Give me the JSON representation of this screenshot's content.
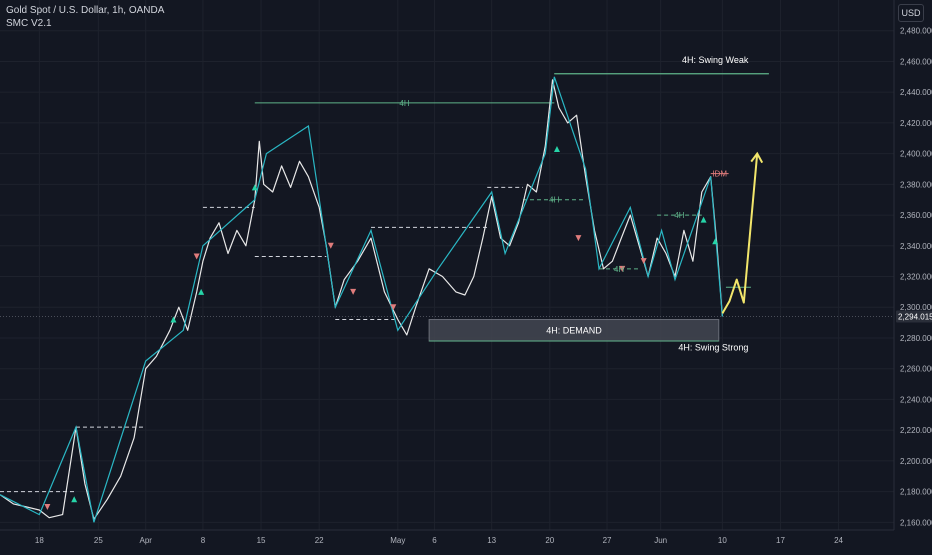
{
  "header": {
    "title": "Gold Spot / U.S. Dollar, 1h, OANDA",
    "indicator": "SMC V2.1"
  },
  "currency": "USD",
  "chart_data": {
    "type": "line",
    "ylim": [
      2155,
      2500
    ],
    "yticks": [
      2160,
      2180,
      2200,
      2220,
      2240,
      2260,
      2280,
      2300,
      2320,
      2340,
      2360,
      2380,
      2400,
      2420,
      2440,
      2460,
      2480
    ],
    "ytick_labels": [
      "2,160.000",
      "2,180.000",
      "2,200.000",
      "2,220.000",
      "2,240.000",
      "2,260.000",
      "2,280.000",
      "2,300.000",
      "2,320.000",
      "2,340.000",
      "2,360.000",
      "2,380.000",
      "2,400.000",
      "2,420.000",
      "2,440.000",
      "2,460.000",
      "2,480.000"
    ],
    "xlim": [
      0,
      100
    ],
    "xticks": [
      {
        "x": 4.4,
        "label": "18"
      },
      {
        "x": 11.0,
        "label": "25"
      },
      {
        "x": 16.3,
        "label": "Apr"
      },
      {
        "x": 22.7,
        "label": "8"
      },
      {
        "x": 29.2,
        "label": "15"
      },
      {
        "x": 35.7,
        "label": "22"
      },
      {
        "x": 44.5,
        "label": "May"
      },
      {
        "x": 48.6,
        "label": "6"
      },
      {
        "x": 55.0,
        "label": "13"
      },
      {
        "x": 61.5,
        "label": "20"
      },
      {
        "x": 67.9,
        "label": "27"
      },
      {
        "x": 73.9,
        "label": "Jun"
      },
      {
        "x": 80.8,
        "label": "10"
      },
      {
        "x": 87.3,
        "label": "17"
      },
      {
        "x": 93.8,
        "label": "24"
      }
    ],
    "last_price": 2294.015,
    "last_price_label": "2,294.015",
    "price_path": [
      [
        0,
        2178
      ],
      [
        1.5,
        2172
      ],
      [
        3,
        2170
      ],
      [
        4.4,
        2168
      ],
      [
        5.5,
        2163
      ],
      [
        7,
        2165
      ],
      [
        8.5,
        2222
      ],
      [
        9.5,
        2185
      ],
      [
        10.5,
        2162
      ],
      [
        12,
        2175
      ],
      [
        13.5,
        2190
      ],
      [
        15,
        2215
      ],
      [
        16.3,
        2260
      ],
      [
        17.5,
        2268
      ],
      [
        19,
        2285
      ],
      [
        20,
        2300
      ],
      [
        21,
        2285
      ],
      [
        22,
        2310
      ],
      [
        22.7,
        2330
      ],
      [
        23.5,
        2345
      ],
      [
        24.5,
        2355
      ],
      [
        25.5,
        2335
      ],
      [
        26.5,
        2350
      ],
      [
        27.5,
        2340
      ],
      [
        28.5,
        2370
      ],
      [
        29,
        2408
      ],
      [
        29.5,
        2380
      ],
      [
        30.5,
        2375
      ],
      [
        31.5,
        2392
      ],
      [
        32.5,
        2378
      ],
      [
        33.5,
        2395
      ],
      [
        34.5,
        2385
      ],
      [
        35.7,
        2365
      ],
      [
        36.5,
        2340
      ],
      [
        37.5,
        2300
      ],
      [
        38.5,
        2318
      ],
      [
        40,
        2330
      ],
      [
        41.5,
        2345
      ],
      [
        43,
        2310
      ],
      [
        44.5,
        2292
      ],
      [
        45.5,
        2282
      ],
      [
        46.5,
        2300
      ],
      [
        48,
        2325
      ],
      [
        49.5,
        2320
      ],
      [
        51,
        2310
      ],
      [
        52,
        2308
      ],
      [
        53,
        2320
      ],
      [
        54,
        2345
      ],
      [
        55,
        2372
      ],
      [
        56,
        2345
      ],
      [
        57,
        2340
      ],
      [
        58,
        2355
      ],
      [
        59,
        2380
      ],
      [
        60,
        2375
      ],
      [
        61,
        2405
      ],
      [
        61.8,
        2448
      ],
      [
        62.5,
        2430
      ],
      [
        63.5,
        2420
      ],
      [
        64.5,
        2425
      ],
      [
        65.5,
        2385
      ],
      [
        66.5,
        2350
      ],
      [
        67.5,
        2325
      ],
      [
        68.5,
        2330
      ],
      [
        69.5,
        2345
      ],
      [
        70.5,
        2360
      ],
      [
        71.5,
        2340
      ],
      [
        72.5,
        2320
      ],
      [
        73.5,
        2345
      ],
      [
        74.5,
        2335
      ],
      [
        75.5,
        2320
      ],
      [
        76.5,
        2350
      ],
      [
        77.5,
        2330
      ],
      [
        78.5,
        2375
      ],
      [
        79.5,
        2385
      ],
      [
        80.2,
        2340
      ],
      [
        80.8,
        2294
      ]
    ],
    "zigzag": [
      [
        0,
        2178
      ],
      [
        4.4,
        2165
      ],
      [
        8.5,
        2222
      ],
      [
        10.5,
        2160
      ],
      [
        16.3,
        2265
      ],
      [
        20.5,
        2285
      ],
      [
        22.7,
        2340
      ],
      [
        28.5,
        2370
      ],
      [
        29.8,
        2400
      ],
      [
        34.5,
        2418
      ],
      [
        37.5,
        2300
      ],
      [
        41.5,
        2350
      ],
      [
        44.5,
        2285
      ],
      [
        49,
        2325
      ],
      [
        55,
        2375
      ],
      [
        56.5,
        2335
      ],
      [
        61,
        2400
      ],
      [
        62,
        2450
      ],
      [
        65.5,
        2390
      ],
      [
        67,
        2325
      ],
      [
        70.5,
        2365
      ],
      [
        72.5,
        2320
      ],
      [
        74,
        2350
      ],
      [
        75.5,
        2318
      ],
      [
        79.5,
        2385
      ],
      [
        80.8,
        2294
      ]
    ],
    "projection": [
      [
        80.8,
        2296
      ],
      [
        81.6,
        2304
      ],
      [
        82.4,
        2318
      ],
      [
        83.2,
        2303
      ],
      [
        84.7,
        2400
      ]
    ],
    "projection_color": "#f2e66b",
    "swing_weak_level": 2452,
    "swing_strong_level": 2278,
    "structure_levels": [
      {
        "x1": 28.5,
        "x2": 62,
        "y": 2433,
        "label": "4H",
        "style": "solid",
        "color": "#5fb389"
      },
      {
        "x1": 62,
        "x2": 86,
        "y": 2452,
        "label": "",
        "style": "solid",
        "color": "#5fb389"
      },
      {
        "x1": 0,
        "x2": 8.5,
        "y": 2180,
        "label": "",
        "style": "dashed",
        "color": "#d1d4dc"
      },
      {
        "x1": 8.5,
        "x2": 16.3,
        "y": 2222,
        "label": "",
        "style": "dashed",
        "color": "#d1d4dc"
      },
      {
        "x1": 22.7,
        "x2": 28.5,
        "y": 2365,
        "label": "",
        "style": "dashed",
        "color": "#d1d4dc"
      },
      {
        "x1": 28.5,
        "x2": 36.5,
        "y": 2333,
        "label": "",
        "style": "dashed",
        "color": "#d1d4dc"
      },
      {
        "x1": 37.5,
        "x2": 44.5,
        "y": 2292,
        "label": "",
        "style": "dashed",
        "color": "#d1d4dc"
      },
      {
        "x1": 41.5,
        "x2": 54.5,
        "y": 2352,
        "label": "",
        "style": "dashed",
        "color": "#d1d4dc"
      },
      {
        "x1": 54.5,
        "x2": 58.5,
        "y": 2378,
        "label": "",
        "style": "dashed",
        "color": "#d1d4dc"
      },
      {
        "x1": 58.5,
        "x2": 65.5,
        "y": 2370,
        "label": "4H",
        "style": "dashed",
        "color": "#5fb389"
      },
      {
        "x1": 67,
        "x2": 71.5,
        "y": 2325,
        "label": "4H",
        "style": "dashed",
        "color": "#5fb389"
      },
      {
        "x1": 73.5,
        "x2": 78.5,
        "y": 2360,
        "label": "4H",
        "style": "dashed",
        "color": "#5fb389"
      },
      {
        "x1": 79.5,
        "x2": 81.5,
        "y": 2387,
        "label": "IDM",
        "style": "solid",
        "color": "#e07c7c"
      },
      {
        "x1": 81.2,
        "x2": 84.0,
        "y": 2313,
        "label": "",
        "style": "solid",
        "color": "#5fb389"
      }
    ],
    "markers_up": [
      [
        8.3,
        2175
      ],
      [
        19.4,
        2292
      ],
      [
        22.5,
        2310
      ],
      [
        28.5,
        2378
      ],
      [
        62.3,
        2403
      ],
      [
        78.7,
        2357
      ],
      [
        80.0,
        2343
      ]
    ],
    "markers_down": [
      [
        5.3,
        2170
      ],
      [
        22.0,
        2333
      ],
      [
        37.0,
        2340
      ],
      [
        39.5,
        2310
      ],
      [
        44.0,
        2300
      ],
      [
        64.7,
        2345
      ],
      [
        69.6,
        2325
      ],
      [
        72.0,
        2330
      ]
    ],
    "demand_zone": {
      "x1": 48.0,
      "x2": 80.4,
      "y1": 2292,
      "y2": 2278,
      "label": "4H: DEMAND"
    },
    "annotations": [
      {
        "text": "4H: Swing Weak",
        "x": 80,
        "y": 2459,
        "color": "#ffffff",
        "anchor": "middle"
      },
      {
        "text": "4H: Swing Strong",
        "x": 79.8,
        "y": 2272,
        "color": "#ffffff",
        "anchor": "middle"
      }
    ]
  }
}
